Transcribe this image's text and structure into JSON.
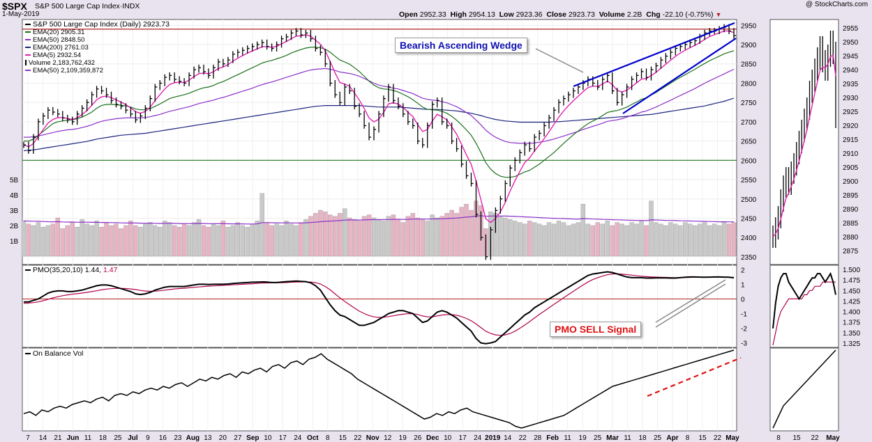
{
  "header": {
    "ticker": "$SPX",
    "name": "S&P 500 Large Cap Index",
    "exchange": "INDX",
    "date": "1-May-2019",
    "watermark": "@ StockCharts.com",
    "open_label": "Open",
    "open": "2952.33",
    "high_label": "High",
    "high": "2954.13",
    "low_label": "Low",
    "low": "2923.36",
    "close_label": "Close",
    "close": "2923.73",
    "volume_label": "Volume",
    "volume": "2.2B",
    "chg_label": "Chg",
    "chg": "-22.10 (-0.75%)"
  },
  "legend": {
    "main": "S&P 500 Large Cap Index (Daily) 2923.73",
    "ema20": "EMA(20) 2905.31",
    "ema50": "EMA(50) 2848.50",
    "ema200": "EMA(200) 2761.03",
    "ema5": "EMA(5) 2932.54",
    "volume": "Volume 2,183,762,432",
    "vol_ema50": "EMA(50) 2,109,359,872",
    "pmo_name": "PMO(35,20,10)",
    "pmo_value": "1.44",
    "pmo_signal_value": "1.47",
    "obv": "On Balance Vol"
  },
  "annotations": {
    "wedge": "Bearish Ascending Wedge",
    "pmo_sell": "PMO SELL Signal"
  },
  "colors": {
    "background": "#e9e3ef",
    "panel": "#ffffff",
    "price": "#000000",
    "ema20": "#1a6e1a",
    "ema50": "#8b2fc9",
    "ema200": "#1a237e",
    "ema5": "#e020b0",
    "volume_up": "#c9c9c9",
    "volume_down": "#e8b4c4",
    "hline_red": "#b02020",
    "hline_green": "#1a7a1a",
    "wedge": "#0000cc",
    "pmo_signal": "#b0004a",
    "obv_trend": "#e01010"
  },
  "chart_data": {
    "type": "line",
    "title": "S&P 500 Large Cap Index (Daily)",
    "price_axis": {
      "ticks": [
        2350,
        2400,
        2450,
        2500,
        2550,
        2600,
        2650,
        2700,
        2750,
        2800,
        2850,
        2900,
        2950
      ],
      "range": [
        2330,
        2965
      ]
    },
    "volume_axis": {
      "ticks": [
        "1B",
        "2B",
        "3B",
        "4B",
        "5B"
      ]
    },
    "pmo_axis": {
      "ticks": [
        -3,
        -2,
        -1,
        0,
        1,
        2
      ],
      "range": [
        -3.3,
        2.3
      ]
    },
    "zoom_price_axis": {
      "ticks": [
        2875,
        2880,
        2885,
        2890,
        2895,
        2900,
        2905,
        2910,
        2915,
        2920,
        2925,
        2930,
        2935,
        2940,
        2945,
        2950,
        2955
      ],
      "range": [
        2870,
        2958
      ]
    },
    "zoom_pmo_axis": {
      "ticks": [
        1.325,
        1.35,
        1.375,
        1.4,
        1.425,
        1.45,
        1.475,
        1.5
      ],
      "range": [
        1.315,
        1.51
      ]
    },
    "x_tick_labels": [
      "7",
      "14",
      "21",
      "Jun",
      "11",
      "18",
      "25",
      "Jul",
      "9",
      "16",
      "23",
      "Aug",
      "13",
      "20",
      "27",
      "Sep",
      "10",
      "17",
      "24",
      "Oct",
      "8",
      "15",
      "22",
      "Nov",
      "12",
      "19",
      "26",
      "Dec",
      "10",
      "17",
      "24",
      "2019",
      "14",
      "22",
      "28",
      "Feb",
      "11",
      "19",
      "25",
      "Mar",
      "11",
      "18",
      "25",
      "Apr",
      "8",
      "15",
      "22",
      "May"
    ],
    "zoom_x_tick_labels": [
      "8",
      "15",
      "22",
      "May"
    ],
    "horizontal_lines": {
      "resistance": 2940,
      "support": 2600
    },
    "price_close": [
      2640,
      2625,
      2660,
      2700,
      2715,
      2730,
      2725,
      2720,
      2710,
      2705,
      2700,
      2720,
      2735,
      2750,
      2770,
      2785,
      2780,
      2770,
      2755,
      2745,
      2740,
      2730,
      2720,
      2705,
      2715,
      2735,
      2760,
      2790,
      2800,
      2815,
      2820,
      2810,
      2805,
      2800,
      2820,
      2835,
      2840,
      2830,
      2820,
      2840,
      2855,
      2850,
      2860,
      2875,
      2880,
      2885,
      2890,
      2895,
      2900,
      2905,
      2895,
      2890,
      2900,
      2915,
      2920,
      2930,
      2935,
      2925,
      2930,
      2915,
      2890,
      2880,
      2850,
      2800,
      2770,
      2750,
      2790,
      2780,
      2740,
      2720,
      2690,
      2660,
      2680,
      2720,
      2760,
      2790,
      2755,
      2740,
      2720,
      2700,
      2690,
      2650,
      2640,
      2690,
      2745,
      2755,
      2700,
      2690,
      2650,
      2630,
      2590,
      2560,
      2540,
      2460,
      2400,
      2350,
      2420,
      2470,
      2500,
      2540,
      2580,
      2600,
      2620,
      2640,
      2630,
      2660,
      2670,
      2690,
      2710,
      2730,
      2750,
      2760,
      2770,
      2780,
      2790,
      2800,
      2810,
      2800,
      2790,
      2810,
      2820,
      2780,
      2750,
      2770,
      2790,
      2810,
      2820,
      2830,
      2815,
      2835,
      2845,
      2860,
      2870,
      2880,
      2890,
      2895,
      2900,
      2905,
      2910,
      2920,
      2930,
      2935,
      2935,
      2940,
      2945,
      2935,
      2923
    ],
    "ema20": [
      2650,
      2650,
      2655,
      2665,
      2675,
      2685,
      2695,
      2700,
      2702,
      2704,
      2705,
      2708,
      2712,
      2718,
      2725,
      2735,
      2742,
      2745,
      2745,
      2744,
      2743,
      2741,
      2738,
      2733,
      2731,
      2731,
      2734,
      2740,
      2746,
      2753,
      2760,
      2764,
      2767,
      2770,
      2774,
      2779,
      2784,
      2788,
      2790,
      2794,
      2800,
      2804,
      2810,
      2816,
      2822,
      2828,
      2834,
      2840,
      2846,
      2852,
      2856,
      2859,
      2863,
      2867,
      2872,
      2878,
      2883,
      2887,
      2891,
      2893,
      2893,
      2892,
      2888,
      2880,
      2870,
      2860,
      2855,
      2849,
      2840,
      2830,
      2818,
      2805,
      2795,
      2788,
      2785,
      2784,
      2781,
      2777,
      2771,
      2765,
      2757,
      2748,
      2738,
      2732,
      2731,
      2730,
      2727,
      2722,
      2714,
      2704,
      2692,
      2679,
      2665,
      2644,
      2620,
      2594,
      2577,
      2566,
      2559,
      2556,
      2556,
      2558,
      2564,
      2570,
      2574,
      2582,
      2590,
      2600,
      2610,
      2620,
      2632,
      2644,
      2655,
      2666,
      2676,
      2686,
      2695,
      2702,
      2708,
      2716,
      2724,
      2727,
      2729,
      2733,
      2738,
      2745,
      2751,
      2758,
      2762,
      2769,
      2776,
      2784,
      2792,
      2800,
      2808,
      2815,
      2822,
      2829,
      2836,
      2844,
      2851,
      2858,
      2864,
      2870,
      2876,
      2880,
      2884
    ],
    "ema50": [
      2660,
      2660,
      2661,
      2663,
      2666,
      2669,
      2672,
      2675,
      2677,
      2679,
      2680,
      2682,
      2685,
      2688,
      2692,
      2697,
      2701,
      2704,
      2706,
      2708,
      2709,
      2710,
      2710,
      2710,
      2710,
      2711,
      2713,
      2716,
      2719,
      2723,
      2727,
      2730,
      2733,
      2736,
      2739,
      2743,
      2747,
      2750,
      2753,
      2756,
      2760,
      2763,
      2767,
      2771,
      2775,
      2779,
      2783,
      2787,
      2792,
      2796,
      2800,
      2803,
      2807,
      2811,
      2815,
      2819,
      2823,
      2827,
      2831,
      2834,
      2836,
      2837,
      2838,
      2836,
      2833,
      2829,
      2827,
      2825,
      2822,
      2818,
      2812,
      2806,
      2800,
      2795,
      2792,
      2790,
      2787,
      2785,
      2781,
      2777,
      2773,
      2767,
      2761,
      2758,
      2756,
      2755,
      2752,
      2749,
      2744,
      2739,
      2732,
      2724,
      2716,
      2704,
      2692,
      2678,
      2668,
      2660,
      2654,
      2649,
      2646,
      2645,
      2644,
      2644,
      2644,
      2645,
      2647,
      2649,
      2652,
      2655,
      2659,
      2663,
      2667,
      2671,
      2675,
      2680,
      2684,
      2688,
      2692,
      2696,
      2701,
      2703,
      2705,
      2708,
      2712,
      2716,
      2720,
      2725,
      2728,
      2733,
      2738,
      2744,
      2750,
      2756,
      2762,
      2768,
      2774,
      2780,
      2786,
      2793,
      2800,
      2806,
      2812,
      2818,
      2824,
      2830,
      2836
    ],
    "ema200": [
      2625,
      2626,
      2627,
      2629,
      2631,
      2633,
      2635,
      2637,
      2639,
      2641,
      2643,
      2645,
      2647,
      2649,
      2652,
      2655,
      2657,
      2659,
      2661,
      2663,
      2665,
      2666,
      2667,
      2668,
      2669,
      2670,
      2672,
      2674,
      2676,
      2678,
      2680,
      2682,
      2684,
      2686,
      2688,
      2690,
      2692,
      2694,
      2696,
      2698,
      2700,
      2702,
      2704,
      2706,
      2708,
      2710,
      2712,
      2714,
      2716,
      2718,
      2720,
      2722,
      2724,
      2726,
      2728,
      2730,
      2732,
      2734,
      2736,
      2738,
      2740,
      2741,
      2742,
      2742,
      2742,
      2742,
      2742,
      2742,
      2742,
      2742,
      2741,
      2740,
      2739,
      2738,
      2738,
      2738,
      2738,
      2738,
      2737,
      2736,
      2735,
      2734,
      2733,
      2732,
      2732,
      2732,
      2731,
      2730,
      2729,
      2728,
      2726,
      2724,
      2722,
      2719,
      2716,
      2712,
      2709,
      2706,
      2704,
      2702,
      2701,
      2700,
      2699,
      2699,
      2699,
      2699,
      2699,
      2699,
      2699,
      2700,
      2700,
      2701,
      2702,
      2703,
      2704,
      2705,
      2706,
      2707,
      2708,
      2709,
      2710,
      2711,
      2712,
      2713,
      2714,
      2715,
      2716,
      2717,
      2718,
      2719,
      2721,
      2723,
      2725,
      2727,
      2729,
      2731,
      2733,
      2735,
      2737,
      2739,
      2741,
      2744,
      2747,
      2750,
      2753,
      2757,
      2761
    ],
    "volume_billions": [
      2.3,
      2.1,
      2.0,
      2.2,
      1.9,
      2.0,
      2.1,
      2.5,
      1.8,
      2.0,
      2.2,
      1.9,
      2.4,
      2.1,
      2.0,
      2.3,
      1.9,
      2.2,
      2.0,
      2.1,
      1.8,
      2.0,
      2.3,
      2.0,
      1.9,
      2.1,
      2.2,
      2.0,
      1.9,
      2.3,
      2.2,
      2.0,
      1.9,
      2.1,
      2.0,
      2.2,
      2.4,
      2.0,
      1.9,
      2.1,
      2.0,
      2.3,
      1.9,
      2.0,
      2.2,
      2.0,
      1.9,
      2.1,
      2.3,
      4.1,
      2.2,
      2.0,
      2.1,
      2.0,
      2.3,
      2.1,
      2.0,
      2.2,
      2.4,
      2.6,
      2.8,
      3.0,
      2.9,
      2.7,
      2.6,
      2.8,
      3.1,
      2.5,
      2.4,
      2.3,
      2.6,
      2.7,
      2.5,
      2.4,
      2.3,
      2.6,
      2.7,
      2.4,
      2.2,
      2.6,
      2.8,
      2.5,
      2.4,
      2.3,
      2.7,
      2.5,
      2.6,
      2.8,
      3.0,
      2.8,
      3.2,
      3.4,
      3.0,
      3.6,
      3.3,
      1.8,
      2.9,
      2.8,
      2.6,
      2.5,
      2.4,
      2.3,
      2.2,
      2.1,
      2.3,
      2.2,
      2.1,
      2.0,
      2.2,
      2.1,
      2.3,
      2.2,
      2.0,
      2.1,
      2.2,
      3.4,
      2.1,
      2.0,
      2.2,
      2.1,
      2.3,
      2.0,
      2.2,
      2.1,
      2.0,
      2.2,
      2.1,
      2.3,
      2.0,
      3.6,
      2.2,
      2.1,
      2.0,
      2.2,
      2.1,
      2.0,
      2.2,
      2.1,
      2.0,
      2.1,
      2.2,
      2.0,
      2.1,
      2.0,
      2.2,
      2.1,
      2.2
    ],
    "pmo": [
      -0.2,
      -0.2,
      -0.1,
      0.0,
      0.2,
      0.4,
      0.5,
      0.55,
      0.55,
      0.5,
      0.5,
      0.55,
      0.6,
      0.7,
      0.8,
      0.9,
      0.95,
      0.95,
      0.9,
      0.8,
      0.7,
      0.6,
      0.5,
      0.35,
      0.3,
      0.35,
      0.45,
      0.6,
      0.7,
      0.8,
      0.85,
      0.85,
      0.85,
      0.85,
      0.9,
      0.95,
      1.0,
      1.0,
      0.98,
      1.0,
      1.0,
      1.0,
      1.02,
      1.05,
      1.08,
      1.1,
      1.12,
      1.14,
      1.15,
      1.16,
      1.15,
      1.12,
      1.12,
      1.15,
      1.18,
      1.2,
      1.22,
      1.2,
      1.18,
      1.1,
      0.9,
      0.6,
      0.1,
      -0.4,
      -0.8,
      -1.1,
      -1.2,
      -1.4,
      -1.6,
      -1.8,
      -1.8,
      -1.7,
      -1.6,
      -1.4,
      -1.2,
      -1.0,
      -0.9,
      -0.8,
      -0.8,
      -0.9,
      -1.0,
      -1.3,
      -1.6,
      -1.5,
      -1.2,
      -0.9,
      -0.8,
      -0.9,
      -1.1,
      -1.3,
      -1.6,
      -1.9,
      -2.2,
      -2.7,
      -3.0,
      -3.05,
      -3.0,
      -2.9,
      -2.6,
      -2.3,
      -2.0,
      -1.7,
      -1.4,
      -1.1,
      -0.9,
      -0.6,
      -0.4,
      -0.2,
      0.0,
      0.2,
      0.4,
      0.6,
      0.8,
      1.0,
      1.2,
      1.4,
      1.6,
      1.7,
      1.75,
      1.8,
      1.85,
      1.8,
      1.7,
      1.6,
      1.5,
      1.45,
      1.45,
      1.45,
      1.42,
      1.42,
      1.43,
      1.44,
      1.43,
      1.42,
      1.42,
      1.45,
      1.48,
      1.5,
      1.5,
      1.49,
      1.48,
      1.49,
      1.5,
      1.5,
      1.49,
      1.48,
      1.44
    ],
    "pmo_signal": [
      -0.3,
      -0.28,
      -0.25,
      -0.2,
      -0.12,
      -0.03,
      0.07,
      0.15,
      0.22,
      0.28,
      0.32,
      0.36,
      0.4,
      0.45,
      0.5,
      0.56,
      0.62,
      0.67,
      0.7,
      0.72,
      0.72,
      0.71,
      0.68,
      0.64,
      0.58,
      0.54,
      0.52,
      0.53,
      0.56,
      0.6,
      0.64,
      0.68,
      0.71,
      0.73,
      0.76,
      0.79,
      0.82,
      0.85,
      0.87,
      0.89,
      0.91,
      0.93,
      0.94,
      0.96,
      0.98,
      1.0,
      1.02,
      1.04,
      1.06,
      1.08,
      1.09,
      1.1,
      1.1,
      1.11,
      1.12,
      1.14,
      1.15,
      1.16,
      1.16,
      1.15,
      1.11,
      1.02,
      0.85,
      0.62,
      0.35,
      0.08,
      -0.17,
      -0.4,
      -0.62,
      -0.83,
      -1.0,
      -1.13,
      -1.22,
      -1.26,
      -1.25,
      -1.2,
      -1.15,
      -1.09,
      -1.04,
      -1.01,
      -1.01,
      -1.06,
      -1.16,
      -1.22,
      -1.22,
      -1.16,
      -1.1,
      -1.07,
      -1.07,
      -1.11,
      -1.2,
      -1.33,
      -1.49,
      -1.71,
      -1.95,
      -2.2,
      -2.35,
      -2.45,
      -2.48,
      -2.45,
      -2.35,
      -2.2,
      -2.0,
      -1.78,
      -1.55,
      -1.3,
      -1.06,
      -0.83,
      -0.6,
      -0.37,
      -0.15,
      0.08,
      0.3,
      0.52,
      0.74,
      0.95,
      1.15,
      1.32,
      1.45,
      1.56,
      1.65,
      1.7,
      1.71,
      1.69,
      1.66,
      1.62,
      1.58,
      1.55,
      1.52,
      1.5,
      1.49,
      1.48,
      1.47,
      1.46,
      1.45,
      1.45,
      1.46,
      1.47,
      1.48,
      1.48,
      1.48,
      1.48,
      1.48,
      1.49,
      1.48,
      1.48,
      1.47
    ],
    "obv_scale": [
      5,
      6,
      4,
      7,
      6,
      8,
      9,
      8,
      10,
      11,
      12,
      11,
      13,
      14,
      12,
      15,
      16,
      15,
      17,
      16,
      18,
      19,
      18,
      20,
      19,
      21,
      22,
      20,
      22,
      24,
      23,
      25,
      24,
      26,
      27,
      25,
      28,
      27,
      29,
      30,
      28,
      31,
      32,
      30,
      33,
      34,
      32,
      35,
      36,
      38,
      35,
      33,
      31,
      29,
      27,
      24,
      22,
      20,
      18,
      16,
      14,
      12,
      10,
      8,
      6,
      4,
      2,
      3,
      5,
      4,
      6,
      5,
      7,
      8,
      6,
      5,
      4,
      3,
      2,
      1,
      0,
      -2,
      -3,
      -2,
      -1,
      0,
      1,
      2,
      3,
      4,
      6,
      8,
      10,
      12,
      14,
      16,
      18,
      20,
      21,
      22,
      23,
      24,
      25,
      26,
      27,
      28,
      29,
      30,
      31,
      32,
      33,
      34,
      35,
      36,
      37,
      38,
      39,
      40
    ],
    "zoom_price_close": [
      2880,
      2883,
      2887,
      2893,
      2898,
      2901,
      2899,
      2903,
      2906,
      2910,
      2914,
      2918,
      2922,
      2926,
      2932,
      2936,
      2940,
      2944,
      2948,
      2943,
      2940,
      2945,
      2950,
      2946,
      2923
    ],
    "zoom_pmo": [
      1.36,
      1.42,
      1.46,
      1.48,
      1.49,
      1.49,
      1.47,
      1.46,
      1.45,
      1.44,
      1.43,
      1.44,
      1.45,
      1.46,
      1.47,
      1.48,
      1.48,
      1.49,
      1.49,
      1.48,
      1.47,
      1.48,
      1.49,
      1.47,
      1.44
    ],
    "zoom_pmo_signal": [
      1.32,
      1.35,
      1.38,
      1.4,
      1.41,
      1.42,
      1.43,
      1.43,
      1.43,
      1.43,
      1.43,
      1.43,
      1.44,
      1.44,
      1.45,
      1.45,
      1.46,
      1.46,
      1.46,
      1.47,
      1.47,
      1.47,
      1.47,
      1.47,
      1.47
    ]
  }
}
